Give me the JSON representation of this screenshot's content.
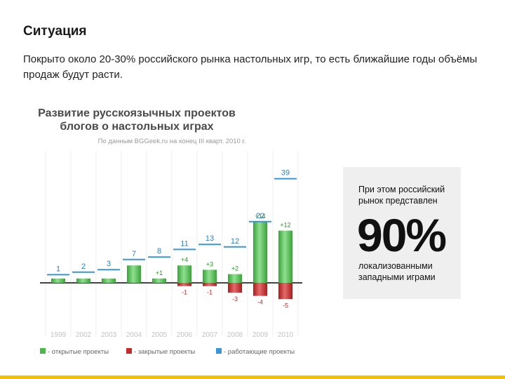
{
  "slide": {
    "title": "Ситуация",
    "text": "Покрыто около 20-30% российского рынка настольных игр, то есть ближайшие годы объёмы продаж будут расти."
  },
  "side_box": {
    "top_text": "При этом российский рынок представлен",
    "big_number": "90%",
    "bottom_text": "локализованными западными играми"
  },
  "colors": {
    "open": "#4cb84c",
    "closed": "#c42a2a",
    "working": "#3a95d6",
    "accent_bar": "#f2c200"
  },
  "chart_data": {
    "type": "bar",
    "title_line1": "Развитие русскоязычных проектов",
    "title_line2": "блогов о настольных играх",
    "subtitle": "По данным BGGeek.ru на конец III кварт. 2010 г.",
    "categories": [
      "1999",
      "2002",
      "2003",
      "2004",
      "2005",
      "2006",
      "2007",
      "2008",
      "2009",
      "2010"
    ],
    "series": [
      {
        "name": "- открытые проекты",
        "key": "open",
        "values": [
          1,
          1,
          1,
          4,
          1,
          4,
          3,
          2,
          14,
          12
        ],
        "labels": [
          "",
          "",
          "",
          "",
          "+1",
          "+4",
          "+3",
          "+2",
          "+14",
          "+12"
        ]
      },
      {
        "name": "- закрытые проекты",
        "key": "closed",
        "values": [
          0,
          0,
          0,
          0,
          0,
          -1,
          -1,
          -3,
          -4,
          -5
        ],
        "labels": [
          "",
          "",
          "",
          "",
          "",
          "-1",
          "-1",
          "-3",
          "-4",
          "-5"
        ]
      },
      {
        "name": "- работающие проекты",
        "key": "working",
        "values": [
          1,
          2,
          3,
          7,
          8,
          11,
          13,
          12,
          22,
          39
        ],
        "labels": [
          "1",
          "2",
          "3",
          "7",
          "8",
          "11",
          "13",
          "12",
          "22",
          "39"
        ]
      }
    ],
    "legend_position": "bottom"
  }
}
